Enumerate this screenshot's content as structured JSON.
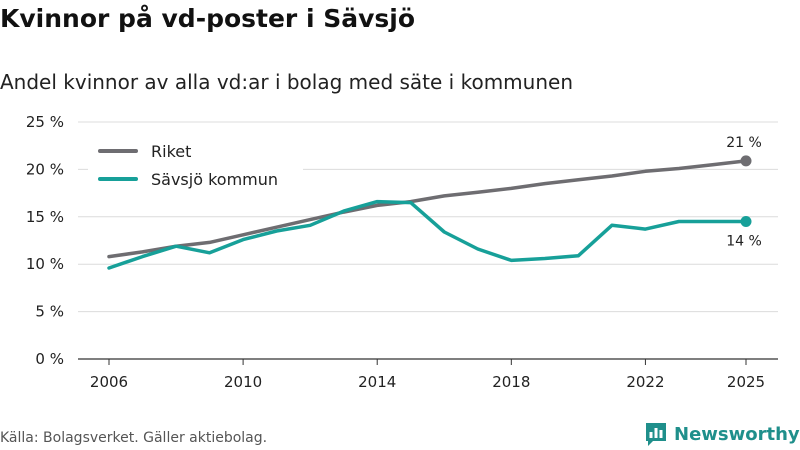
{
  "chart_data": {
    "type": "line",
    "title": "Kvinnor på vd-poster i Sävsjö",
    "subtitle": "Andel kvinnor av alla vd:ar i bolag med säte i kommunen",
    "xlabel": "",
    "ylabel": "",
    "xlim": [
      2006,
      2025
    ],
    "ylim": [
      0,
      25
    ],
    "x_ticks": [
      2006,
      2010,
      2014,
      2018,
      2022,
      2025
    ],
    "y_ticks": [
      0,
      5,
      10,
      15,
      20,
      25
    ],
    "y_tick_labels": [
      "0 %",
      "5 %",
      "10 %",
      "15 %",
      "20 %",
      "25 %"
    ],
    "grid": true,
    "legend_position": "top-left",
    "series": [
      {
        "name": "Riket",
        "color": "#6e6d71",
        "x": [
          2006,
          2007,
          2008,
          2009,
          2010,
          2011,
          2012,
          2013,
          2014,
          2015,
          2016,
          2017,
          2018,
          2019,
          2020,
          2021,
          2022,
          2023,
          2024,
          2025
        ],
        "values": [
          10.8,
          11.3,
          11.9,
          12.3,
          13.1,
          13.9,
          14.7,
          15.5,
          16.2,
          16.6,
          17.2,
          17.6,
          18.0,
          18.5,
          18.9,
          19.3,
          19.8,
          20.1,
          20.5,
          20.9
        ],
        "end_label": "21 %"
      },
      {
        "name": "Sävsjö kommun",
        "color": "#17a099",
        "x": [
          2006,
          2007,
          2008,
          2009,
          2010,
          2011,
          2012,
          2013,
          2014,
          2015,
          2016,
          2017,
          2018,
          2019,
          2020,
          2021,
          2022,
          2023,
          2024,
          2025
        ],
        "values": [
          9.6,
          10.8,
          11.9,
          11.2,
          12.6,
          13.5,
          14.1,
          15.6,
          16.6,
          16.5,
          13.4,
          11.6,
          10.4,
          10.6,
          10.9,
          14.1,
          13.7,
          14.5,
          14.5,
          14.5
        ],
        "end_label": "14 %"
      }
    ]
  },
  "footer": {
    "source": "Källa: Bolagsverket. Gäller aktiebolag.",
    "brand": "Newsworthy"
  }
}
